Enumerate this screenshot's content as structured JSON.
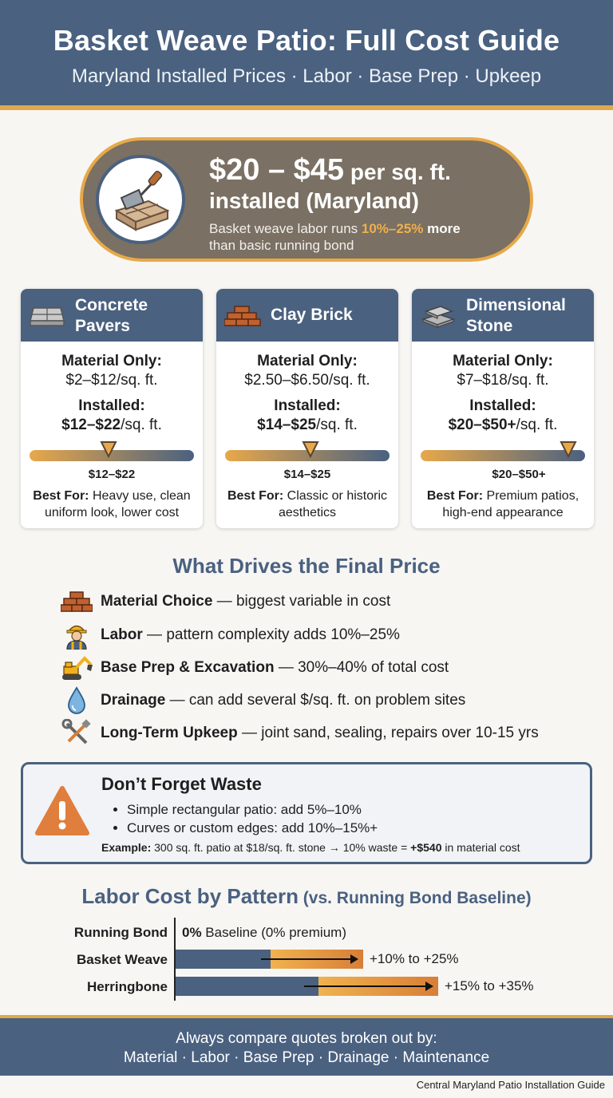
{
  "header": {
    "title": "Basket Weave Patio: Full Cost Guide",
    "subtitle": "Maryland Installed Prices · Labor · Base Prep · Upkeep"
  },
  "hero": {
    "price": "$20 – $45",
    "unit": " per sq. ft.",
    "installed": "installed (Maryland)",
    "note_pre": "Basket weave labor runs ",
    "note_highlight": "10%–25%",
    "note_bold": " more",
    "note_post": "than basic running bond",
    "icon": "trowel-on-bricks-icon"
  },
  "cards": [
    {
      "title": "Concrete Pavers",
      "icon": "concrete-paver-icon",
      "material_label": "Material Only:",
      "material_value": "$2–$12/sq. ft.",
      "installed_label": "Installed:",
      "installed_value": "$12–$22",
      "installed_unit": "/sq. ft.",
      "range_label": "$12–$22",
      "marker_fraction": 0.48,
      "best_label": "Best For:",
      "best_text": " Heavy use, clean uniform look, lower cost"
    },
    {
      "title": "Clay Brick",
      "icon": "clay-brick-icon",
      "material_label": "Material Only:",
      "material_value": "$2.50–$6.50/sq. ft.",
      "installed_label": "Installed:",
      "installed_value": "$14–$25",
      "installed_unit": "/sq. ft.",
      "range_label": "$14–$25",
      "marker_fraction": 0.52,
      "best_label": "Best For:",
      "best_text": " Classic or historic aesthetics"
    },
    {
      "title": "Dimensional Stone",
      "icon": "stone-slab-icon",
      "material_label": "Material Only:",
      "material_value": "$7–$18/sq. ft.",
      "installed_label": "Installed:",
      "installed_value": "$20–$50+",
      "installed_unit": "/sq. ft.",
      "range_label": "$20–$50+",
      "marker_fraction": 0.9,
      "best_label": "Best For:",
      "best_text": " Premium patios, high-end appearance"
    }
  ],
  "drivers": {
    "title": "What Drives the Final Price",
    "items": [
      {
        "icon": "brick-stack-icon",
        "bold": "Material Choice",
        "text": " — biggest variable in cost"
      },
      {
        "icon": "worker-icon",
        "bold": "Labor",
        "text": " — pattern complexity adds 10%–25%"
      },
      {
        "icon": "excavator-icon",
        "bold": "Base Prep & Excavation",
        "text": " — 30%–40% of total cost"
      },
      {
        "icon": "water-drop-icon",
        "bold": "Drainage",
        "text": " — can add several $/sq. ft. on problem sites"
      },
      {
        "icon": "tools-icon",
        "bold": "Long-Term Upkeep",
        "text": " — joint sand, sealing, repairs over 10-15 yrs"
      }
    ]
  },
  "waste": {
    "title": "Don’t Forget Waste",
    "icon": "warning-icon",
    "bullets": [
      "Simple rectangular patio: add 5%–10%",
      "Curves or custom edges: add 10%–15%+"
    ],
    "example_label": "Example:",
    "example_text": " 300 sq. ft. patio at $18/sq. ft. stone → 10% waste = ",
    "example_amount": "+$540",
    "example_post": " in material cost"
  },
  "labor": {
    "title": "Labor Cost by Pattern",
    "title_suffix": " (vs. Running Bond Baseline)",
    "rows": [
      {
        "name": "Running Bond",
        "value_bold": "0%",
        "value_text": " Baseline (0% premium)",
        "premium_low": 0,
        "premium_high": 0
      },
      {
        "name": "Basket Weave",
        "value_text": "+10% to +25%",
        "premium_low": 10,
        "premium_high": 25
      },
      {
        "name": "Herringbone",
        "value_text": "+15% to +35%",
        "premium_low": 15,
        "premium_high": 35
      }
    ]
  },
  "footer": {
    "line1": "Always compare quotes broken out by:",
    "line2": "Material · Labor · Base Prep · Drainage · Maintenance",
    "credit": "Central Maryland Patio Installation Guide"
  },
  "colors": {
    "navy": "#4a6180",
    "accent": "#e0a84c",
    "hero_bg": "#7a7063"
  }
}
